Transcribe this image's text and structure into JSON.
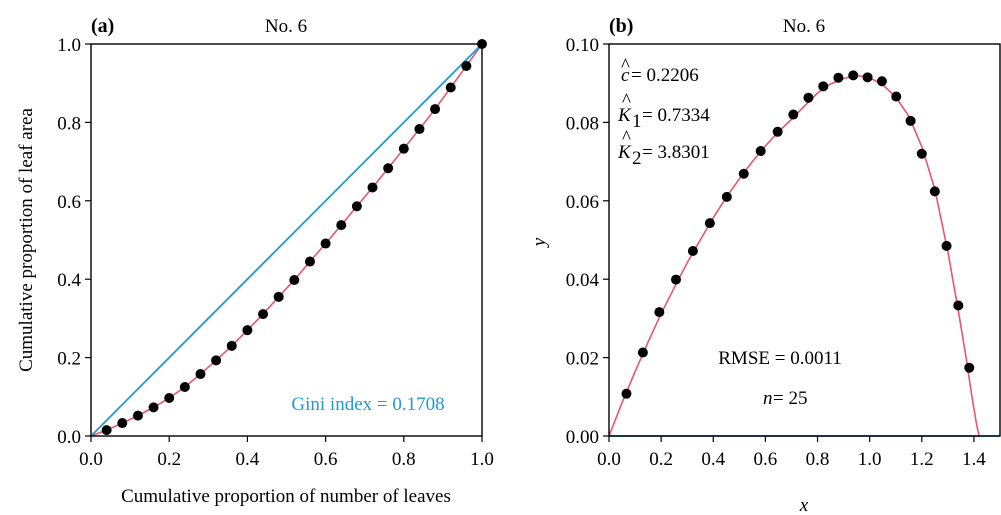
{
  "chart_data": [
    {
      "type": "scatter",
      "panel_label": "(a)",
      "title": "No. 6",
      "xlabel": "Cumulative proportion of number of leaves",
      "ylabel": "Cumulative proportion of leaf area",
      "xlim": [
        0,
        1
      ],
      "ylim": [
        0,
        1
      ],
      "xticks": [
        "0.0",
        "0.2",
        "0.4",
        "0.6",
        "0.8",
        "1.0"
      ],
      "yticks": [
        "0.0",
        "0.2",
        "0.4",
        "0.6",
        "0.8",
        "1.0"
      ],
      "annotation": "Gini index = 0.1708",
      "colors": {
        "equality_line": "#1f9ad6",
        "fit_curve": "#e8566c",
        "points": "#000000"
      },
      "series": [
        {
          "kind": "points",
          "x": [
            0.04,
            0.08,
            0.12,
            0.16,
            0.2,
            0.24,
            0.28,
            0.32,
            0.36,
            0.4,
            0.44,
            0.48,
            0.52,
            0.56,
            0.6,
            0.64,
            0.68,
            0.72,
            0.76,
            0.8,
            0.84,
            0.88,
            0.92,
            0.96,
            1.0
          ],
          "y": [
            0.015,
            0.033,
            0.052,
            0.073,
            0.097,
            0.125,
            0.158,
            0.193,
            0.23,
            0.27,
            0.311,
            0.355,
            0.398,
            0.445,
            0.491,
            0.538,
            0.586,
            0.634,
            0.683,
            0.733,
            0.783,
            0.834,
            0.889,
            0.944,
            1.0
          ]
        },
        {
          "kind": "fit-curve",
          "x": [
            0.0,
            0.04,
            0.08,
            0.12,
            0.16,
            0.2,
            0.24,
            0.28,
            0.32,
            0.36,
            0.4,
            0.44,
            0.48,
            0.52,
            0.56,
            0.6,
            0.64,
            0.68,
            0.72,
            0.76,
            0.8,
            0.84,
            0.88,
            0.92,
            0.96,
            1.0
          ],
          "y": [
            0.0,
            0.015,
            0.033,
            0.052,
            0.073,
            0.097,
            0.125,
            0.158,
            0.193,
            0.23,
            0.27,
            0.311,
            0.355,
            0.398,
            0.445,
            0.491,
            0.538,
            0.586,
            0.634,
            0.683,
            0.733,
            0.783,
            0.834,
            0.889,
            0.944,
            1.0
          ]
        },
        {
          "kind": "equality-line",
          "x": [
            0,
            1
          ],
          "y": [
            0,
            1
          ]
        }
      ]
    },
    {
      "type": "scatter",
      "panel_label": "(b)",
      "title": "No. 6",
      "xlabel": "x",
      "ylabel": "y",
      "xlim": [
        0,
        1.5
      ],
      "ylim": [
        0,
        0.1
      ],
      "xticks": [
        "0.0",
        "0.2",
        "0.4",
        "0.6",
        "0.8",
        "1.0",
        "1.2",
        "1.4"
      ],
      "yticks": [
        "0.00",
        "0.02",
        "0.04",
        "0.06",
        "0.08",
        "0.10"
      ],
      "params": {
        "c_label": "c",
        "c_value": " = 0.2206",
        "k1_label": "K",
        "k1_sub": "1",
        "k1_value": " = 0.7334",
        "k2_label": "K",
        "k2_sub": "2",
        "k2_value": " = 3.8301",
        "hat": "^"
      },
      "rmse": "RMSE = 0.0011",
      "n_label": "n",
      "n_value": " = 25",
      "colors": {
        "fit_curve": "#e8566c",
        "zero_line": "#1f9ad6",
        "points": "#000000"
      },
      "series": [
        {
          "kind": "points",
          "x": [
            0.067,
            0.13,
            0.193,
            0.257,
            0.322,
            0.387,
            0.452,
            0.517,
            0.582,
            0.647,
            0.707,
            0.765,
            0.822,
            0.88,
            0.937,
            0.992,
            1.047,
            1.102,
            1.157,
            1.2,
            1.25,
            1.295,
            1.34,
            1.382
          ],
          "y": [
            0.0108,
            0.0213,
            0.0316,
            0.0399,
            0.0472,
            0.0543,
            0.061,
            0.0669,
            0.0727,
            0.0776,
            0.082,
            0.0863,
            0.0892,
            0.0914,
            0.092,
            0.0915,
            0.0905,
            0.0866,
            0.0804,
            0.072,
            0.0624,
            0.0485,
            0.0333,
            0.0174
          ]
        },
        {
          "kind": "fit-curve",
          "x": [
            0.0,
            0.05,
            0.1,
            0.15,
            0.2,
            0.25,
            0.3,
            0.35,
            0.4,
            0.45,
            0.5,
            0.55,
            0.6,
            0.65,
            0.7,
            0.75,
            0.8,
            0.85,
            0.9,
            0.95,
            1.0,
            1.05,
            1.1,
            1.15,
            1.2,
            1.25,
            1.3,
            1.34,
            1.37,
            1.39,
            1.41,
            1.42
          ],
          "y": [
            0.0,
            0.0085,
            0.0164,
            0.024,
            0.0312,
            0.0378,
            0.0442,
            0.05,
            0.0557,
            0.0609,
            0.0656,
            0.07,
            0.074,
            0.0776,
            0.0808,
            0.0842,
            0.0875,
            0.0898,
            0.0912,
            0.092,
            0.0914,
            0.0896,
            0.0865,
            0.0816,
            0.0738,
            0.063,
            0.047,
            0.032,
            0.02,
            0.011,
            0.003,
            0.0
          ]
        },
        {
          "kind": "zero-line",
          "x": [
            0,
            1.5
          ],
          "y": [
            0,
            0
          ]
        }
      ]
    }
  ]
}
